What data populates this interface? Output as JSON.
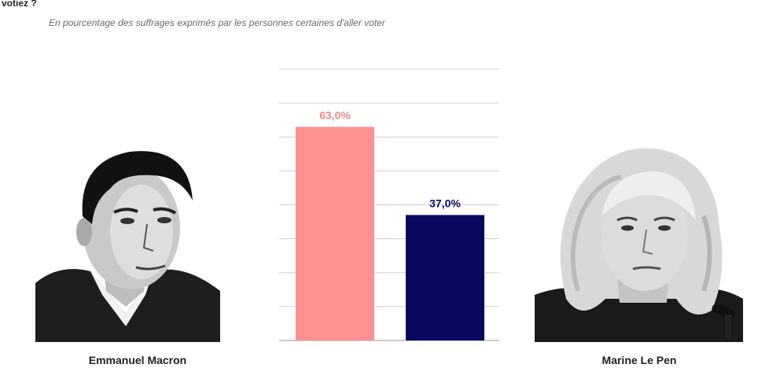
{
  "header": {
    "question_fragment": "votiez ?",
    "subtitle": "En pourcentage des suffrages exprimés par les personnes certaines d'aller voter"
  },
  "candidates": [
    {
      "name": "Emmanuel Macron",
      "portrait_icon": "man-portrait-icon"
    },
    {
      "name": "Marine Le Pen",
      "portrait_icon": "woman-portrait-icon"
    }
  ],
  "chart_data": {
    "type": "bar",
    "categories": [
      "Emmanuel Macron",
      "Marine Le Pen"
    ],
    "values": [
      63.0,
      37.0
    ],
    "value_labels": [
      "63,0%",
      "37,0%"
    ],
    "colors": [
      "#ff9191",
      "#08095e"
    ],
    "label_colors": [
      "#f28888",
      "#08095e"
    ],
    "ylim": [
      0,
      80
    ],
    "grid": true,
    "grid_step": 10,
    "title": "",
    "xlabel": "",
    "ylabel": ""
  }
}
